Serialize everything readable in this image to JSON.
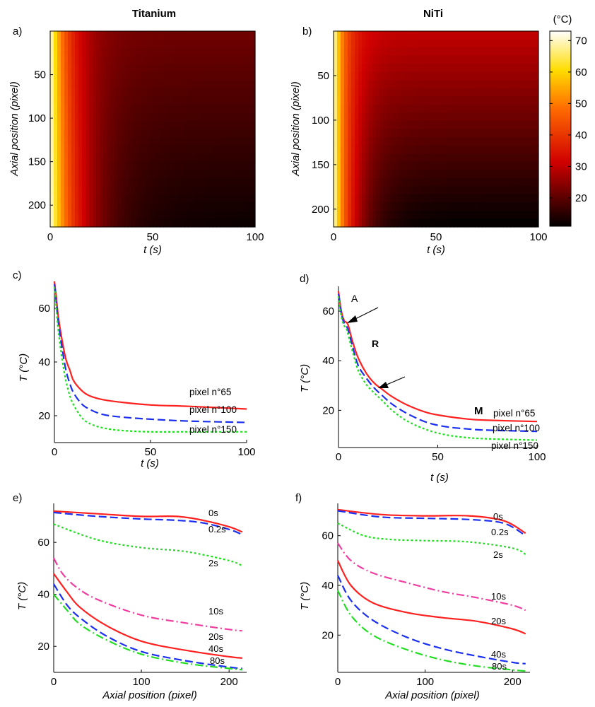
{
  "figure": {
    "column_titles": [
      "Titanium",
      "NiTi"
    ],
    "colorbar": {
      "unit": "(°C)",
      "ticks": [
        20,
        30,
        40,
        50,
        60,
        70
      ],
      "range": [
        11,
        73
      ]
    }
  },
  "chart_data": [
    {
      "panel": "a)",
      "type": "heatmap",
      "title": "Titanium",
      "xlabel": "t (s)",
      "ylabel": "Axial position (pixel)",
      "xlim": [
        0,
        100
      ],
      "ylim": [
        0,
        225
      ],
      "xticks": [
        0,
        50,
        100
      ],
      "yticks": [
        50,
        100,
        150,
        200
      ],
      "T0": 73,
      "Tinf": [
        22,
        12
      ],
      "tau": 9
    },
    {
      "panel": "b)",
      "type": "heatmap",
      "title": "NiTi",
      "xlabel": "t (s)",
      "ylabel": "Axial position (pixel)",
      "xlim": [
        0,
        100
      ],
      "ylim": [
        0,
        220
      ],
      "xticks": [
        0,
        50,
        100
      ],
      "yticks": [
        50,
        100,
        150,
        200
      ],
      "T0": 72,
      "Tinf": [
        30,
        11
      ],
      "tau": 6
    },
    {
      "panel": "c)",
      "type": "line",
      "xlabel": "t (s)",
      "ylabel": "T (°C)",
      "xlim": [
        0,
        100
      ],
      "ylim": [
        10,
        70
      ],
      "xticks": [
        0,
        50,
        100
      ],
      "yticks": [
        20,
        40,
        60
      ],
      "series": [
        {
          "name": "pixel n°65",
          "color": "#ff2020",
          "dash": "",
          "x": [
            0,
            1,
            2,
            4,
            6,
            8,
            10,
            14,
            18,
            25,
            35,
            50,
            70,
            100
          ],
          "y": [
            70,
            64,
            57,
            48,
            41,
            37,
            33,
            29.5,
            27.5,
            26,
            25,
            24,
            23.5,
            22.5
          ]
        },
        {
          "name": "pixel n°100",
          "color": "#1b2ff0",
          "dash": "11 5",
          "x": [
            0,
            1,
            2,
            4,
            6,
            8,
            10,
            14,
            18,
            25,
            35,
            50,
            70,
            100
          ],
          "y": [
            69,
            62,
            55,
            45,
            37,
            32,
            28.5,
            24.5,
            22.5,
            20.5,
            19.5,
            18.7,
            18,
            17.5
          ]
        },
        {
          "name": "pixel n°150",
          "color": "#22dd22",
          "dash": "3 3",
          "x": [
            0,
            1,
            2,
            4,
            6,
            8,
            10,
            14,
            18,
            25,
            35,
            50,
            70,
            100
          ],
          "y": [
            68,
            60,
            52,
            41,
            33,
            27.5,
            24,
            19.5,
            17.2,
            15.5,
            14.5,
            14,
            14,
            14
          ]
        }
      ]
    },
    {
      "panel": "d)",
      "type": "line",
      "xlabel": "t (s)",
      "ylabel": "T (°C)",
      "xlim": [
        0,
        100
      ],
      "ylim": [
        5,
        70
      ],
      "xticks": [
        0,
        50,
        100
      ],
      "yticks": [
        20,
        40,
        60
      ],
      "annotations": [
        "A",
        "R",
        "M"
      ],
      "series": [
        {
          "name": "pixel n°65",
          "color": "#ff2020",
          "dash": "",
          "x": [
            0,
            1,
            2,
            3,
            4,
            5,
            7,
            10,
            14,
            18,
            22,
            27,
            35,
            45,
            55,
            65,
            75,
            100
          ],
          "y": [
            68,
            62,
            58,
            56,
            55.5,
            54,
            48,
            41,
            35,
            31,
            28.5,
            25.5,
            22,
            19,
            17.5,
            16.5,
            16,
            15.5
          ]
        },
        {
          "name": "pixel n°100",
          "color": "#1b2ff0",
          "dash": "11 5",
          "x": [
            0,
            1,
            2,
            3,
            4,
            5,
            7,
            10,
            14,
            18,
            22,
            27,
            35,
            45,
            55,
            65,
            75,
            100
          ],
          "y": [
            67,
            61,
            57,
            55,
            54,
            52,
            46,
            38,
            33,
            29,
            26,
            22.5,
            18.5,
            15,
            13.3,
            12.5,
            12,
            11.5
          ]
        },
        {
          "name": "pixel n°150",
          "color": "#22dd22",
          "dash": "3 3",
          "x": [
            0,
            1,
            2,
            3,
            4,
            5,
            7,
            10,
            14,
            18,
            22,
            27,
            35,
            45,
            55,
            65,
            75,
            100
          ],
          "y": [
            66,
            60,
            56,
            54,
            53,
            50,
            44,
            36,
            30.5,
            27,
            24,
            20,
            15.5,
            12,
            10,
            9,
            8.5,
            8
          ]
        }
      ]
    },
    {
      "panel": "e)",
      "type": "line",
      "xlabel": "Axial position (pixel)",
      "ylabel": "T (°C)",
      "xlim": [
        0,
        220
      ],
      "ylim": [
        10,
        75
      ],
      "xticks": [
        0,
        100,
        200
      ],
      "yticks": [
        20,
        40,
        60
      ],
      "series": [
        {
          "name": "0s",
          "color": "#ff2020",
          "dash": "",
          "x": [
            0,
            50,
            100,
            140,
            170,
            200,
            215
          ],
          "y": [
            72,
            71,
            70,
            70,
            68.5,
            66,
            64
          ]
        },
        {
          "name": "0.2s",
          "color": "#1b2ff0",
          "dash": "11 5",
          "x": [
            0,
            50,
            100,
            140,
            170,
            200,
            215
          ],
          "y": [
            71.5,
            70,
            69,
            68.5,
            67.5,
            65,
            63
          ]
        },
        {
          "name": "2s",
          "color": "#22dd22",
          "dash": "3 3",
          "x": [
            0,
            50,
            100,
            150,
            200,
            215
          ],
          "y": [
            67,
            61,
            58,
            56.5,
            53,
            51
          ]
        },
        {
          "name": "10s",
          "color": "#ee3fa0",
          "dash": "11 4 2 4",
          "x": [
            0,
            10,
            25,
            50,
            100,
            150,
            200,
            215
          ],
          "y": [
            54,
            48,
            43,
            38,
            32,
            29,
            26.5,
            26
          ]
        },
        {
          "name": "20s",
          "color": "#ff2020",
          "dash": "",
          "x": [
            0,
            15,
            30,
            60,
            100,
            150,
            200,
            215
          ],
          "y": [
            48,
            41,
            35,
            28,
            22,
            18.5,
            16,
            15.5
          ]
        },
        {
          "name": "40s",
          "color": "#1b2ff0",
          "dash": "11 5",
          "x": [
            0,
            15,
            30,
            60,
            100,
            150,
            200,
            215
          ],
          "y": [
            44,
            36,
            31,
            24,
            18,
            14.5,
            12,
            11.5
          ]
        },
        {
          "name": "80s",
          "color": "#22dd22",
          "dash": "11 4 2 4",
          "x": [
            0,
            15,
            30,
            60,
            100,
            150,
            200,
            215
          ],
          "y": [
            40,
            34,
            28.5,
            22.5,
            17,
            13.5,
            11.5,
            11
          ]
        }
      ]
    },
    {
      "panel": "f)",
      "type": "line",
      "xlabel": "Axial position (pixel)",
      "ylabel": "T (°C)",
      "xlim": [
        0,
        220
      ],
      "ylim": [
        5,
        73
      ],
      "xticks": [
        0,
        100,
        200
      ],
      "yticks": [
        20,
        40,
        60
      ],
      "series": [
        {
          "name": "0s",
          "color": "#ff2020",
          "dash": "",
          "x": [
            0,
            50,
            100,
            150,
            190,
            215
          ],
          "y": [
            70.5,
            68.5,
            68,
            68,
            66,
            61
          ]
        },
        {
          "name": "0.2s",
          "color": "#1b2ff0",
          "dash": "11 5",
          "x": [
            0,
            50,
            100,
            150,
            190,
            215
          ],
          "y": [
            70,
            67.5,
            67,
            66.5,
            65,
            60
          ]
        },
        {
          "name": "2s",
          "color": "#22dd22",
          "dash": "3 3",
          "x": [
            0,
            30,
            60,
            100,
            150,
            200,
            215
          ],
          "y": [
            65,
            60,
            58.5,
            58,
            57.5,
            55,
            52.5
          ]
        },
        {
          "name": "10s",
          "color": "#ee3fa0",
          "dash": "11 4 2 4",
          "x": [
            0,
            15,
            40,
            80,
            120,
            160,
            200,
            215
          ],
          "y": [
            57,
            50,
            45,
            41,
            37.5,
            35,
            32,
            30
          ]
        },
        {
          "name": "20s",
          "color": "#ff2020",
          "dash": "",
          "x": [
            0,
            15,
            40,
            80,
            120,
            160,
            200,
            215
          ],
          "y": [
            50,
            40,
            33,
            29,
            27,
            25.5,
            22.5,
            20.5
          ]
        },
        {
          "name": "40s",
          "color": "#1b2ff0",
          "dash": "11 5",
          "x": [
            0,
            15,
            40,
            80,
            120,
            160,
            200,
            215
          ],
          "y": [
            44,
            34,
            26,
            19,
            14.5,
            11.5,
            9,
            8.5
          ]
        },
        {
          "name": "80s",
          "color": "#22dd22",
          "dash": "11 4 2 4",
          "x": [
            0,
            15,
            40,
            80,
            120,
            160,
            200,
            215
          ],
          "y": [
            38,
            28,
            20,
            14,
            10,
            7.5,
            6,
            5.5
          ]
        }
      ]
    }
  ]
}
